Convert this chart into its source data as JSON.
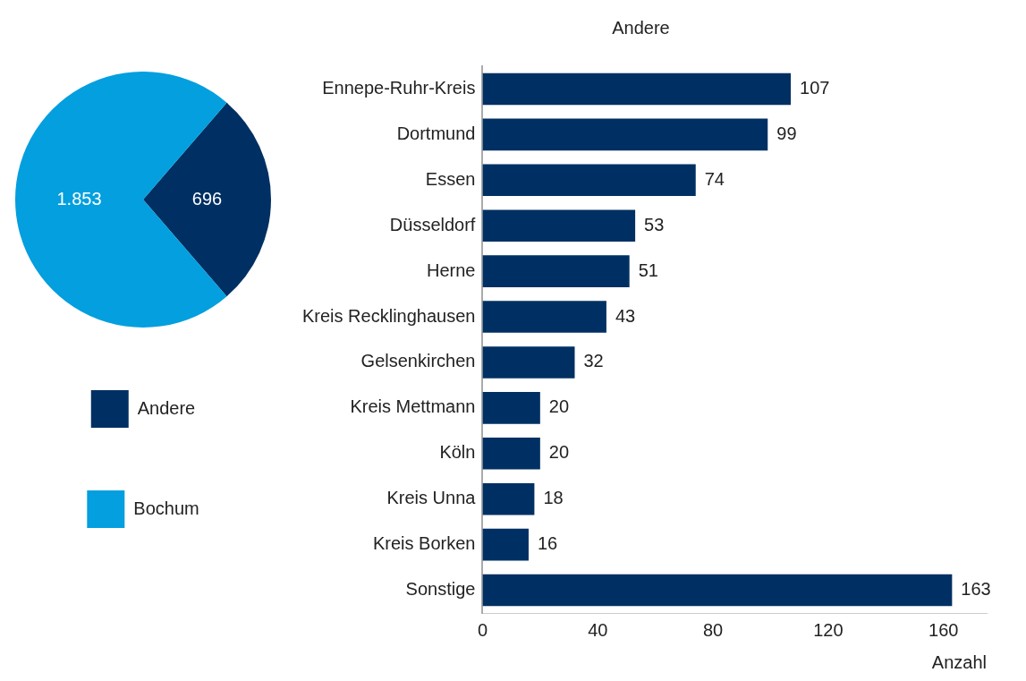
{
  "chart_data": [
    {
      "type": "pie",
      "categories": [
        "Andere",
        "Bochum"
      ],
      "values": [
        696,
        1853
      ],
      "colors": [
        "#003063",
        "#039fdf"
      ],
      "value_labels": [
        "696",
        "1.853"
      ],
      "legend": "bottom"
    },
    {
      "type": "bar",
      "orientation": "horizontal",
      "title": "Andere",
      "xlabel": "Anzahl",
      "categories": [
        "Ennepe-Ruhr-Kreis",
        "Dortmund",
        "Essen",
        "Düsseldorf",
        "Herne",
        "Kreis Recklinghausen",
        "Gelsenkirchen",
        "Kreis Mettmann",
        "Köln",
        "Kreis Unna",
        "Kreis Borken",
        "Sonstige"
      ],
      "values": [
        107,
        99,
        74,
        53,
        51,
        43,
        32,
        20,
        20,
        18,
        16,
        163
      ],
      "color": "#003063",
      "xlim": [
        0,
        175
      ],
      "xticks": [
        0,
        40,
        80,
        120,
        160
      ],
      "data_labels": true
    }
  ]
}
